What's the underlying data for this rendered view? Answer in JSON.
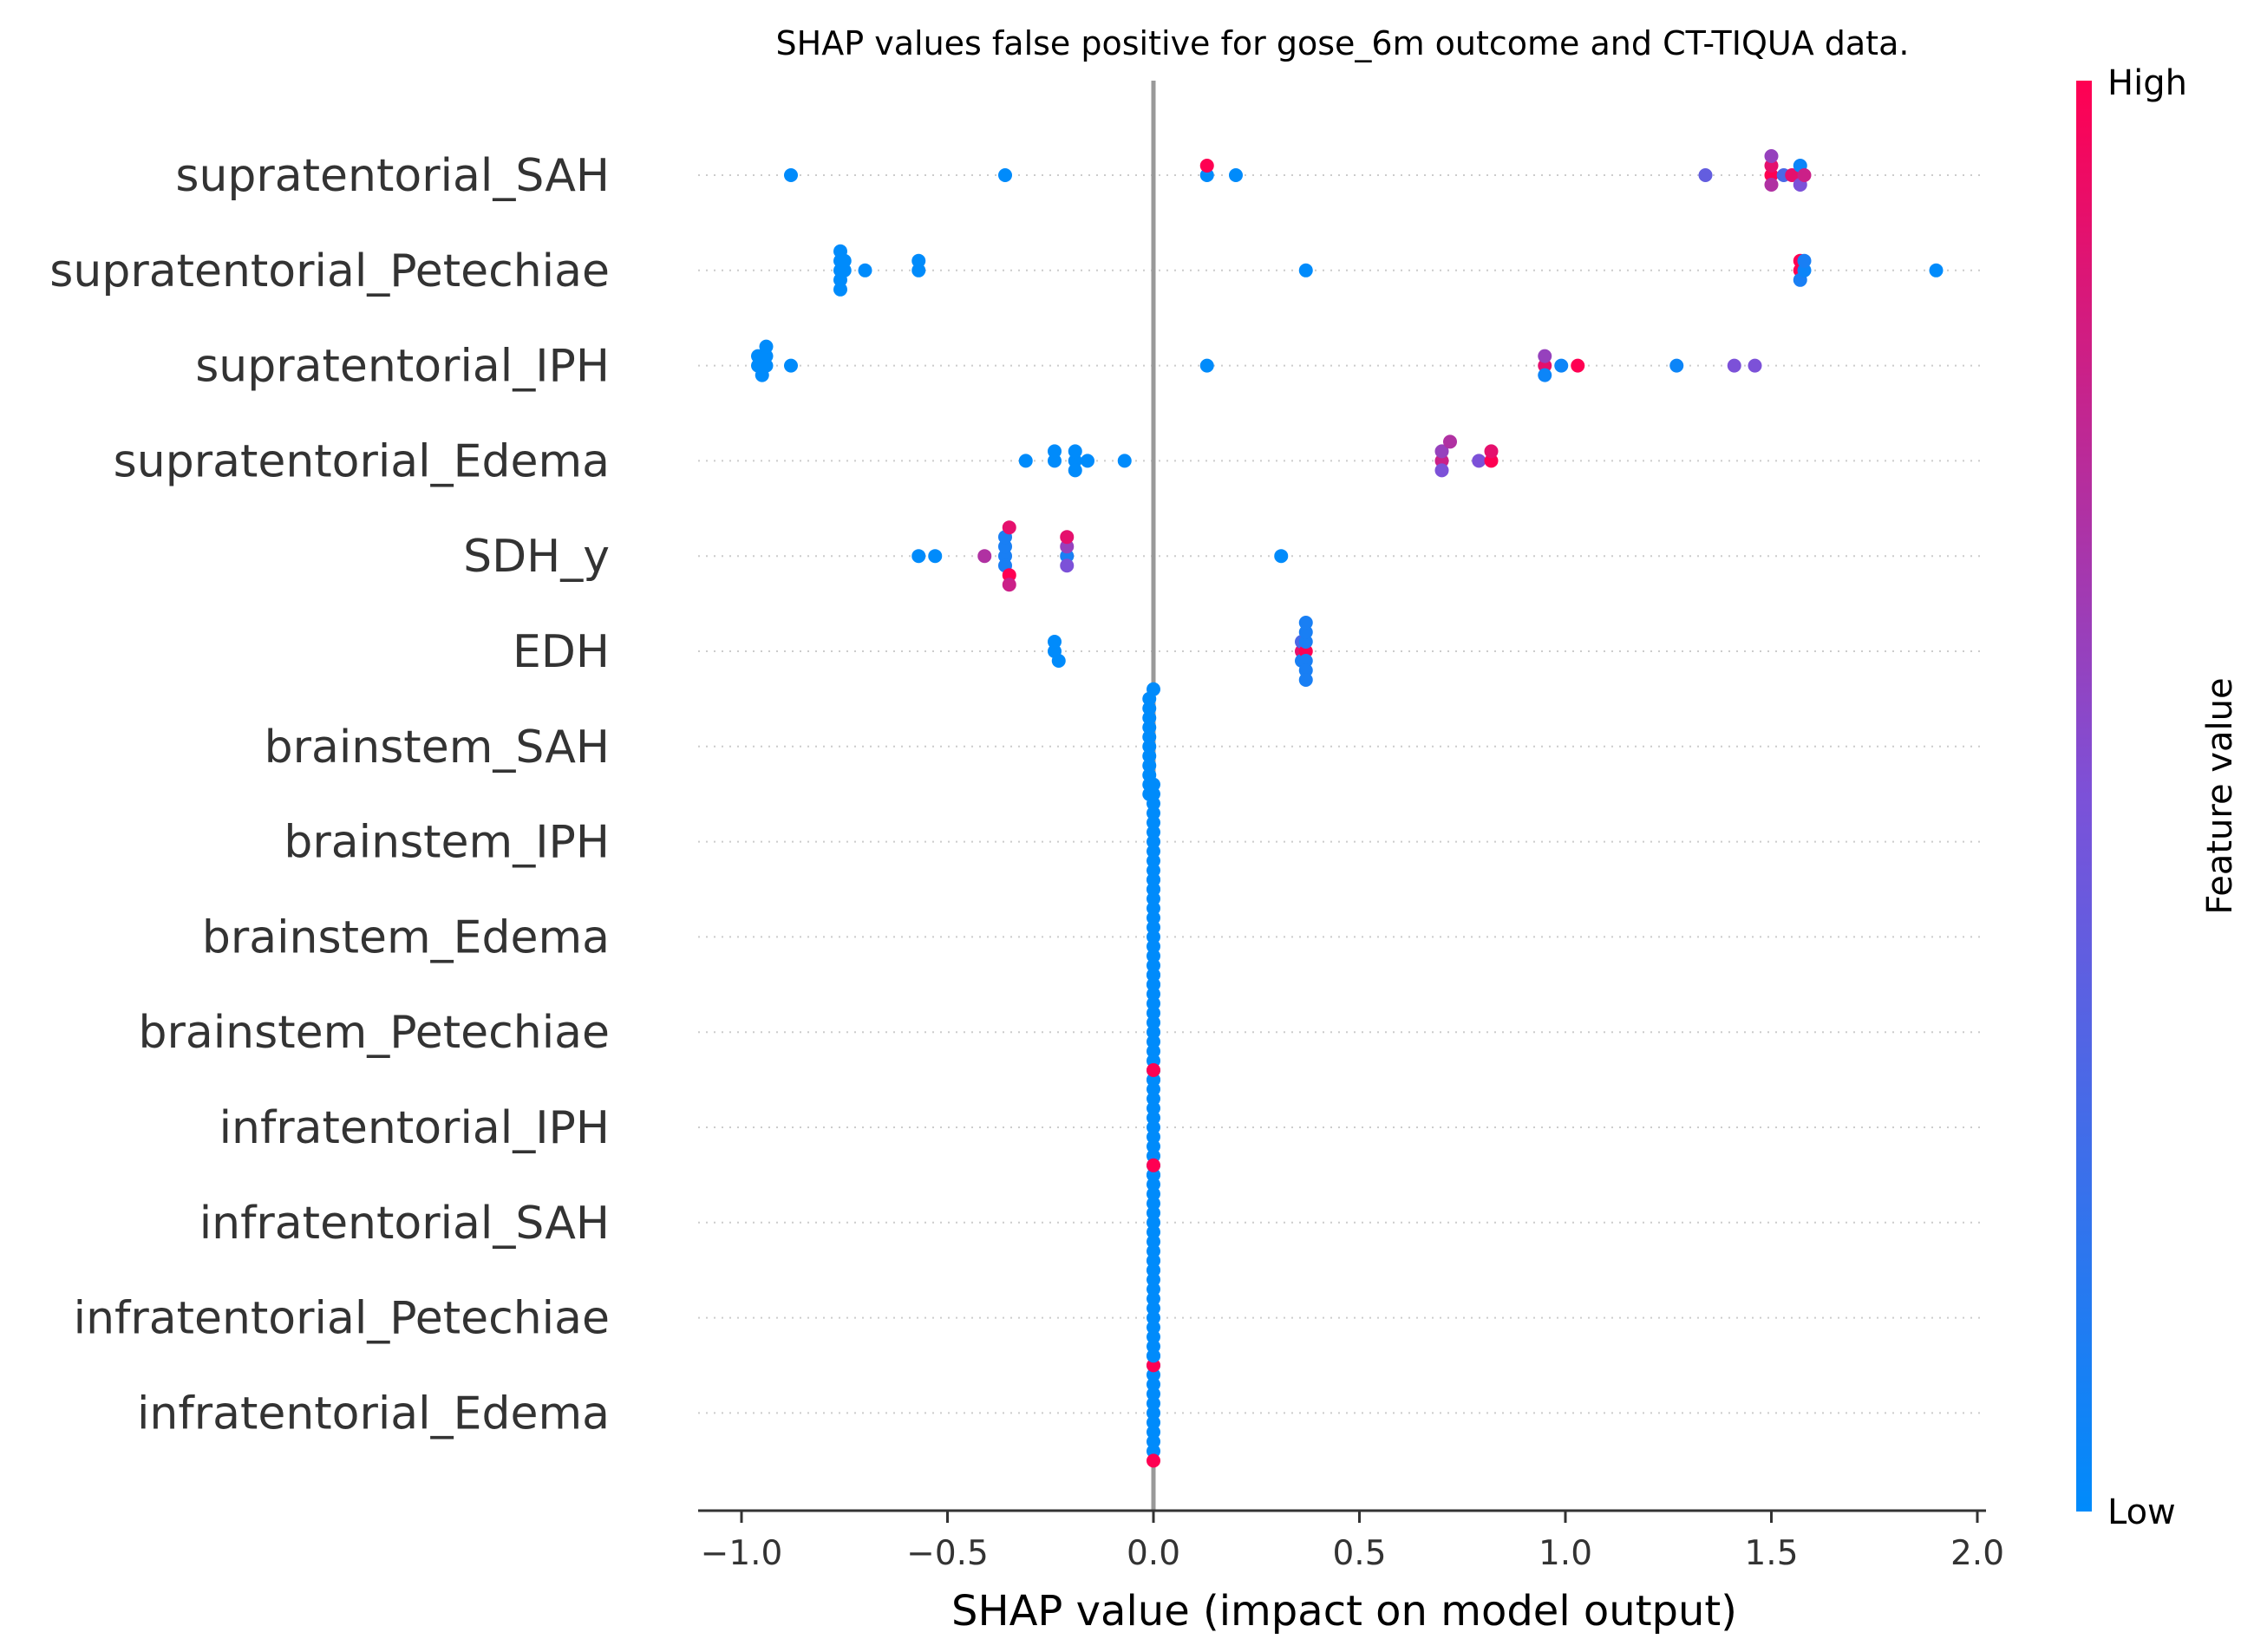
{
  "chart_data": {
    "type": "scatter",
    "subtype": "shap-beeswarm",
    "title": "SHAP values false positive for gose_6m outcome and CT-TIQUA data.",
    "xlabel": "SHAP value (impact on model output)",
    "xlim": [
      -1.1,
      2.02
    ],
    "xticks": [
      -1.0,
      -0.5,
      0.0,
      0.5,
      1.0,
      1.5,
      2.0
    ],
    "xtick_labels": [
      "−1.0",
      "−0.5",
      "0.0",
      "0.5",
      "1.0",
      "1.5",
      "2.0"
    ],
    "grid": "dotted horizontal per feature",
    "colorbar": {
      "label": "Feature value",
      "high_label": "High",
      "low_label": "Low",
      "low_color": "#008bfb",
      "mid_color": "#7c51d8",
      "high_color": "#ff0052"
    },
    "features": [
      {
        "name": "supratentorial_SAH",
        "points": [
          [
            -0.88,
            0.0
          ],
          [
            -0.36,
            0.0
          ],
          [
            0.13,
            0.0
          ],
          [
            0.13,
            1.0
          ],
          [
            0.2,
            0.0
          ],
          [
            1.34,
            0.4
          ],
          [
            1.5,
            1.0
          ],
          [
            1.5,
            0.9
          ],
          [
            1.5,
            0.7
          ],
          [
            1.5,
            0.6
          ],
          [
            1.53,
            0.3
          ],
          [
            1.55,
            0.9
          ],
          [
            1.57,
            0.05
          ],
          [
            1.57,
            0.5
          ],
          [
            1.58,
            0.8
          ]
        ]
      },
      {
        "name": "supratentorial_Petechiae",
        "points": [
          [
            -0.76,
            0.0
          ],
          [
            -0.76,
            0.0
          ],
          [
            -0.76,
            0.0
          ],
          [
            -0.76,
            0.0
          ],
          [
            -0.76,
            0.0
          ],
          [
            -0.75,
            0.0
          ],
          [
            -0.75,
            0.0
          ],
          [
            -0.7,
            0.0
          ],
          [
            -0.57,
            0.0
          ],
          [
            -0.57,
            0.0
          ],
          [
            0.37,
            0.0
          ],
          [
            1.57,
            1.0
          ],
          [
            1.57,
            1.0
          ],
          [
            1.57,
            0.1
          ],
          [
            1.58,
            0.05
          ],
          [
            1.58,
            0.1
          ],
          [
            1.9,
            0.0
          ]
        ]
      },
      {
        "name": "supratentorial_IPH",
        "points": [
          [
            -0.94,
            0.0
          ],
          [
            -0.94,
            0.0
          ],
          [
            -0.95,
            0.0
          ],
          [
            -0.96,
            0.0
          ],
          [
            -0.96,
            0.0
          ],
          [
            -0.88,
            0.0
          ],
          [
            -0.94,
            0.0
          ],
          [
            0.13,
            0.0
          ],
          [
            0.95,
            0.9
          ],
          [
            0.95,
            0.6
          ],
          [
            0.95,
            0.05
          ],
          [
            0.99,
            0.05
          ],
          [
            1.03,
            1.0
          ],
          [
            1.27,
            0.05
          ],
          [
            1.41,
            0.5
          ],
          [
            1.46,
            0.5
          ]
        ]
      },
      {
        "name": "supratentorial_Edema",
        "points": [
          [
            -0.31,
            0.0
          ],
          [
            -0.24,
            0.0
          ],
          [
            -0.24,
            0.0
          ],
          [
            -0.19,
            0.0
          ],
          [
            -0.19,
            0.0
          ],
          [
            -0.19,
            0.0
          ],
          [
            -0.16,
            0.0
          ],
          [
            -0.07,
            0.0
          ],
          [
            0.7,
            0.8
          ],
          [
            0.7,
            0.6
          ],
          [
            0.7,
            0.5
          ],
          [
            0.72,
            0.7
          ],
          [
            0.79,
            0.5
          ],
          [
            0.82,
            1.0
          ],
          [
            0.82,
            0.9
          ]
        ]
      },
      {
        "name": "SDH_y",
        "points": [
          [
            -0.57,
            0.0
          ],
          [
            -0.53,
            0.0
          ],
          [
            -0.41,
            0.7
          ],
          [
            -0.36,
            0.1
          ],
          [
            -0.36,
            0.1
          ],
          [
            -0.36,
            0.1
          ],
          [
            -0.36,
            0.1
          ],
          [
            -0.35,
            1.0
          ],
          [
            -0.35,
            0.9
          ],
          [
            -0.35,
            0.8
          ],
          [
            -0.21,
            0.1
          ],
          [
            -0.21,
            0.6
          ],
          [
            -0.21,
            0.5
          ],
          [
            -0.21,
            0.9
          ],
          [
            0.31,
            0.0
          ]
        ]
      },
      {
        "name": "EDH",
        "points": [
          [
            -0.24,
            0.0
          ],
          [
            -0.24,
            0.0
          ],
          [
            -0.23,
            0.0
          ],
          [
            0.36,
            0.9
          ],
          [
            0.36,
            0.3
          ],
          [
            0.36,
            0.1
          ],
          [
            0.37,
            1.0
          ],
          [
            0.37,
            0.1
          ],
          [
            0.37,
            0.1
          ],
          [
            0.37,
            0.1
          ],
          [
            0.37,
            0.1
          ],
          [
            0.37,
            0.1
          ],
          [
            0.37,
            0.1
          ]
        ]
      },
      {
        "name": "brainstem_SAH",
        "points": [
          [
            -0.01,
            0.0
          ],
          [
            -0.01,
            0.0
          ],
          [
            -0.01,
            0.0
          ],
          [
            -0.01,
            0.0
          ],
          [
            -0.01,
            0.0
          ],
          [
            -0.01,
            0.0
          ],
          [
            -0.01,
            0.0
          ],
          [
            -0.01,
            0.0
          ],
          [
            -0.01,
            0.0
          ],
          [
            -0.01,
            0.0
          ],
          [
            -0.01,
            0.0
          ],
          [
            0.0,
            0.0
          ]
        ]
      },
      {
        "name": "brainstem_IPH",
        "points": [
          [
            0.0,
            0.0
          ],
          [
            0.0,
            0.0
          ],
          [
            0.0,
            0.0
          ],
          [
            0.0,
            0.0
          ],
          [
            0.0,
            0.0
          ],
          [
            0.0,
            0.0
          ],
          [
            0.0,
            0.0
          ],
          [
            0.0,
            0.0
          ],
          [
            0.0,
            0.0
          ],
          [
            0.0,
            0.0
          ],
          [
            0.0,
            0.0
          ],
          [
            0.0,
            0.0
          ]
        ]
      },
      {
        "name": "brainstem_Edema",
        "points": [
          [
            0.0,
            0.0
          ],
          [
            0.0,
            0.0
          ],
          [
            0.0,
            0.0
          ],
          [
            0.0,
            0.0
          ],
          [
            0.0,
            0.0
          ],
          [
            0.0,
            0.0
          ],
          [
            0.0,
            0.0
          ],
          [
            0.0,
            0.0
          ],
          [
            0.0,
            0.0
          ],
          [
            0.0,
            0.0
          ],
          [
            0.0,
            0.0
          ],
          [
            0.0,
            0.0
          ]
        ]
      },
      {
        "name": "brainstem_Petechiae",
        "points": [
          [
            0.0,
            0.0
          ],
          [
            0.0,
            0.0
          ],
          [
            0.0,
            0.0
          ],
          [
            0.0,
            0.0
          ],
          [
            0.0,
            0.0
          ],
          [
            0.0,
            0.0
          ],
          [
            0.0,
            0.0
          ],
          [
            0.0,
            0.0
          ],
          [
            0.0,
            0.0
          ],
          [
            0.0,
            0.0
          ],
          [
            0.0,
            0.0
          ],
          [
            0.0,
            0.0
          ]
        ]
      },
      {
        "name": "infratentorial_IPH",
        "points": [
          [
            0.0,
            0.0
          ],
          [
            0.0,
            0.0
          ],
          [
            0.0,
            0.0
          ],
          [
            0.0,
            0.0
          ],
          [
            0.0,
            0.0
          ],
          [
            0.0,
            0.0
          ],
          [
            0.0,
            0.0
          ],
          [
            0.0,
            0.0
          ],
          [
            0.0,
            0.0
          ],
          [
            0.0,
            0.0
          ],
          [
            0.0,
            0.0
          ],
          [
            0.0,
            1.0
          ]
        ]
      },
      {
        "name": "infratentorial_SAH",
        "points": [
          [
            0.0,
            0.0
          ],
          [
            0.0,
            0.0
          ],
          [
            0.0,
            0.0
          ],
          [
            0.0,
            0.0
          ],
          [
            0.0,
            0.0
          ],
          [
            0.0,
            0.0
          ],
          [
            0.0,
            0.0
          ],
          [
            0.0,
            0.0
          ],
          [
            0.0,
            0.0
          ],
          [
            0.0,
            0.0
          ],
          [
            0.0,
            0.0
          ],
          [
            0.0,
            1.0
          ]
        ]
      },
      {
        "name": "infratentorial_Petechiae",
        "points": [
          [
            0.0,
            0.0
          ],
          [
            0.0,
            0.0
          ],
          [
            0.0,
            0.0
          ],
          [
            0.0,
            0.0
          ],
          [
            0.0,
            0.0
          ],
          [
            0.0,
            0.0
          ],
          [
            0.0,
            0.0
          ],
          [
            0.0,
            0.0
          ],
          [
            0.0,
            0.0
          ],
          [
            0.0,
            0.0
          ],
          [
            0.0,
            0.0
          ],
          [
            0.0,
            0.0
          ]
        ]
      },
      {
        "name": "infratentorial_Edema",
        "points": [
          [
            0.0,
            0.0
          ],
          [
            0.0,
            0.0
          ],
          [
            0.0,
            0.0
          ],
          [
            0.0,
            0.0
          ],
          [
            0.0,
            0.0
          ],
          [
            0.0,
            0.0
          ],
          [
            0.0,
            0.0
          ],
          [
            0.0,
            0.0
          ],
          [
            0.0,
            0.0
          ],
          [
            0.0,
            1.0
          ],
          [
            0.0,
            1.0
          ],
          [
            0.0,
            0.0
          ]
        ]
      }
    ]
  }
}
